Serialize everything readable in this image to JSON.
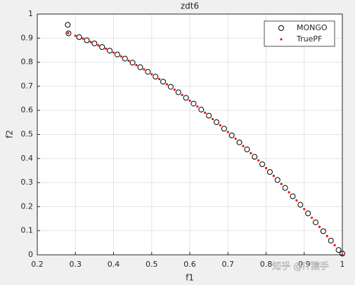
{
  "chart_data": {
    "type": "scatter",
    "title": "zdt6",
    "xlabel": "f1",
    "ylabel": "f2",
    "xlim": [
      0.2,
      1
    ],
    "xticks": [
      0.2,
      0.3,
      0.4,
      0.5,
      0.6,
      0.7,
      0.8,
      0.9,
      1
    ],
    "ylim": [
      0,
      1
    ],
    "yticks": [
      0,
      0.1,
      0.2,
      0.3,
      0.4,
      0.5,
      0.6,
      0.7,
      0.8,
      0.9,
      1
    ],
    "grid": true,
    "legend_position": "upper-right",
    "series": [
      {
        "name": "MONGO",
        "color": "#000000",
        "marker": "circle",
        "x": [
          0.28,
          0.282,
          0.31,
          0.33,
          0.35,
          0.37,
          0.39,
          0.41,
          0.43,
          0.45,
          0.47,
          0.49,
          0.51,
          0.53,
          0.55,
          0.57,
          0.59,
          0.61,
          0.63,
          0.65,
          0.67,
          0.69,
          0.71,
          0.73,
          0.75,
          0.77,
          0.79,
          0.81,
          0.83,
          0.85,
          0.87,
          0.89,
          0.91,
          0.93,
          0.95,
          0.97,
          0.99,
          1.0
        ],
        "y": [
          0.955,
          0.92,
          0.904,
          0.891,
          0.878,
          0.863,
          0.848,
          0.832,
          0.815,
          0.798,
          0.779,
          0.76,
          0.74,
          0.719,
          0.698,
          0.675,
          0.652,
          0.628,
          0.603,
          0.578,
          0.551,
          0.524,
          0.496,
          0.467,
          0.438,
          0.407,
          0.376,
          0.344,
          0.311,
          0.278,
          0.243,
          0.208,
          0.172,
          0.135,
          0.098,
          0.059,
          0.02,
          0.005
        ]
      },
      {
        "name": "TruePF",
        "color": "#ff0000",
        "marker": "dot",
        "x": [
          0.281,
          0.3,
          0.32,
          0.34,
          0.36,
          0.38,
          0.4,
          0.42,
          0.44,
          0.46,
          0.48,
          0.5,
          0.52,
          0.54,
          0.56,
          0.58,
          0.6,
          0.62,
          0.64,
          0.66,
          0.68,
          0.7,
          0.72,
          0.74,
          0.76,
          0.78,
          0.8,
          0.82,
          0.84,
          0.86,
          0.88,
          0.9,
          0.92,
          0.94,
          0.96,
          0.98,
          1.0
        ],
        "y": [
          0.921,
          0.91,
          0.898,
          0.884,
          0.87,
          0.856,
          0.84,
          0.824,
          0.806,
          0.788,
          0.77,
          0.75,
          0.73,
          0.708,
          0.686,
          0.664,
          0.64,
          0.616,
          0.59,
          0.564,
          0.538,
          0.51,
          0.482,
          0.452,
          0.422,
          0.392,
          0.36,
          0.328,
          0.294,
          0.26,
          0.226,
          0.19,
          0.154,
          0.116,
          0.078,
          0.04,
          0
        ]
      }
    ]
  },
  "watermark": "知乎 @IT猿手"
}
